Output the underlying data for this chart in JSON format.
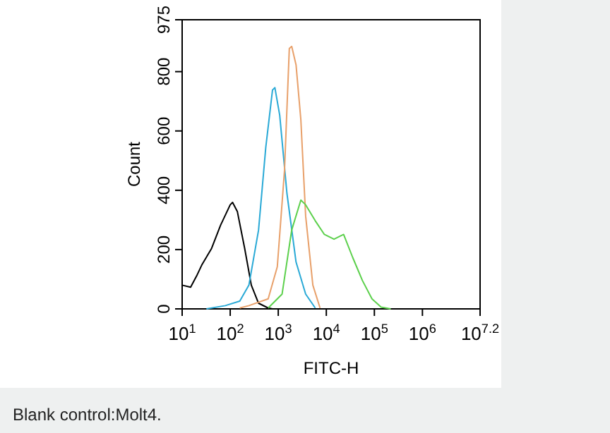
{
  "chart_data": {
    "type": "line",
    "xlabel": "FITC-H",
    "ylabel": "Count",
    "log": "x",
    "xlim": [
      10,
      15848932
    ],
    "ylim": [
      0,
      975
    ],
    "xticks": [
      {
        "value": 10,
        "label": "10$^{1}$"
      },
      {
        "value": 100,
        "label": "10$^{2}$"
      },
      {
        "value": 1000,
        "label": "10$^{3}$"
      },
      {
        "value": 10000,
        "label": "10$^{4}$"
      },
      {
        "value": 100000,
        "label": "10$^{5}$"
      },
      {
        "value": 1000000,
        "label": "10$^{6}$"
      },
      {
        "value": 15848932,
        "label": "10$^{7.2}$"
      }
    ],
    "yticks": [
      0,
      200,
      400,
      600,
      800,
      975
    ],
    "annotations": [
      "Blank control:Molt4."
    ],
    "series": [
      {
        "color": "#000000",
        "x": [
          10,
          15,
          20,
          26,
          41,
          63,
          100,
          112,
          141,
          200,
          275,
          389,
          617,
          759
        ],
        "values": [
          80,
          73,
          111,
          150,
          204,
          282,
          351,
          359,
          328,
          204,
          80,
          19,
          3,
          0
        ]
      },
      {
        "color": "#29a9d6",
        "x": [
          32,
          79,
          158,
          245,
          389,
          550,
          759,
          851,
          1072,
          1514,
          2344,
          3715,
          5888
        ],
        "values": [
          0,
          11,
          26,
          80,
          266,
          545,
          738,
          746,
          653,
          390,
          158,
          50,
          3
        ]
      },
      {
        "color": "#e8a06a",
        "x": [
          158,
          245,
          617,
          955,
          1349,
          1698,
          1905,
          2344,
          2951,
          3715,
          5248,
          7413
        ],
        "values": [
          3,
          11,
          34,
          142,
          467,
          878,
          885,
          823,
          638,
          313,
          80,
          3
        ]
      },
      {
        "color": "#5cd04c",
        "x": [
          617,
          1202,
          1905,
          2951,
          3715,
          5888,
          9120,
          14454,
          22909,
          35481,
          56234,
          89125,
          138038,
          218776
        ],
        "values": [
          3,
          50,
          266,
          367,
          351,
          297,
          251,
          235,
          251,
          173,
          96,
          34,
          6,
          0
        ]
      }
    ]
  }
}
